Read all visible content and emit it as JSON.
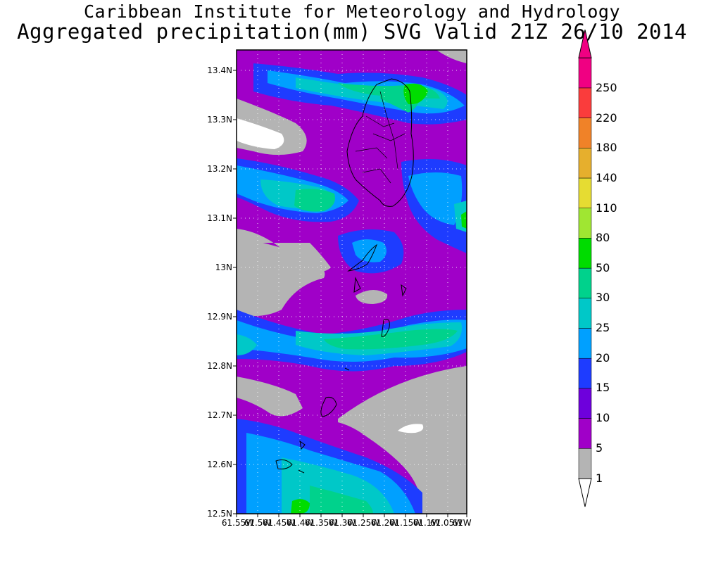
{
  "title_line1": "Caribbean Institute for Meteorology and Hydrology",
  "title_line2": "Aggregated precipitation(mm) SVG Valid 21Z 26/10 2014",
  "latitude_ticks": [
    "13.4N",
    "13.3N",
    "13.2N",
    "13.1N",
    "13N",
    "12.9N",
    "12.8N",
    "12.7N",
    "12.6N",
    "12.5N"
  ],
  "longitude_ticks": [
    "61.55W",
    "61.5W",
    "61.45W",
    "61.4W",
    "61.35W",
    "61.3W",
    "61.25W",
    "61.2W",
    "61.15W",
    "61.1W",
    "61.05W",
    "61W"
  ],
  "colorbar": {
    "labels": [
      "1",
      "5",
      "10",
      "15",
      "20",
      "25",
      "30",
      "50",
      "80",
      "110",
      "140",
      "180",
      "220",
      "250"
    ],
    "colors": [
      "#b4b4b4",
      "#a000c8",
      "#6e00dc",
      "#1e3cff",
      "#00a0ff",
      "#00c8c8",
      "#00d28c",
      "#00dc00",
      "#a0e632",
      "#e6dc32",
      "#e6af2d",
      "#f08228",
      "#fa3c3c",
      "#f00082"
    ]
  },
  "map": {
    "background_color": "#a000c8",
    "island_outline_color": "#000000",
    "grid": "dotted"
  }
}
